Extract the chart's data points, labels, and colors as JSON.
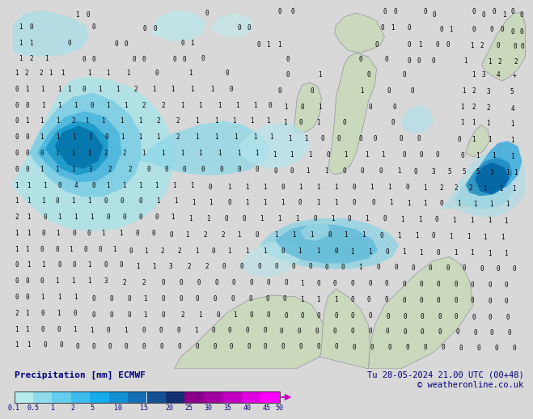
{
  "title_left": "Precipitation [mm] ECMWF",
  "title_right": "Tu 28-05-2024 21.00 UTC (00+48)",
  "copyright": "© weatheronline.co.uk",
  "colorbar_labels": [
    "0.1",
    "0.5",
    "1",
    "2",
    "5",
    "10",
    "15",
    "20",
    "25",
    "30",
    "35",
    "40",
    "45",
    "50"
  ],
  "colorbar_colors": [
    "#b4ecec",
    "#8cdcec",
    "#64ccec",
    "#3cbcec",
    "#14acec",
    "#1490d4",
    "#1470b4",
    "#145094",
    "#143074",
    "#8b008b",
    "#a000a0",
    "#c000c0",
    "#e000e0",
    "#ff00ff"
  ],
  "sea_color": "#e8e8e8",
  "land_color": "#c8dcc0",
  "bg_color": "#d8d8d8",
  "font_color": "#000000",
  "label_fontsize": 7.0,
  "title_fontsize": 8.0,
  "bottom_bg": "#f0f0f0"
}
